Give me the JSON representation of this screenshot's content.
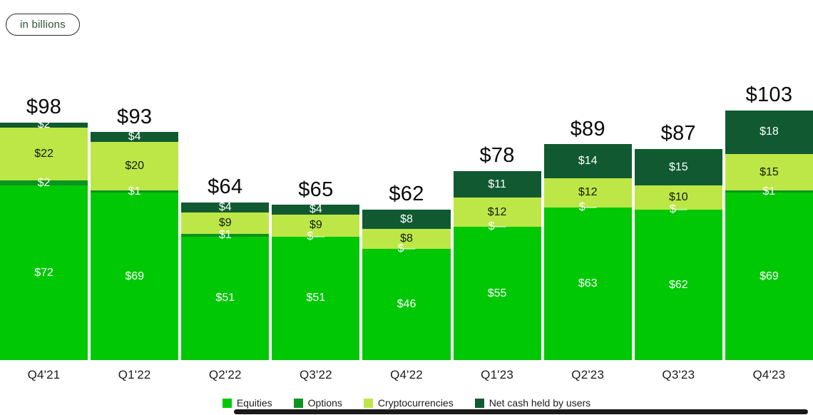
{
  "badge": {
    "label": "in billions"
  },
  "colors": {
    "equities": "#00C805",
    "options": "#0A9420",
    "cryptocurrencies": "#BDE747",
    "net_cash": "#115A31",
    "total_label": "#0a0a0a",
    "axis_label": "#1c1c1c"
  },
  "chart_data": {
    "type": "bar",
    "stacked": true,
    "title": "",
    "unit_note": "in billions",
    "xlabel": "",
    "ylabel": "",
    "ylim": [
      0,
      110
    ],
    "grid": false,
    "y_axis_visible": false,
    "legend_position": "bottom-center",
    "categories": [
      "Q4'21",
      "Q1'22",
      "Q2'22",
      "Q3'22",
      "Q4'22",
      "Q1'23",
      "Q2'23",
      "Q3'23",
      "Q4'23"
    ],
    "totals": [
      "$98",
      "$93",
      "$64",
      "$65",
      "$62",
      "$78",
      "$89",
      "$87",
      "$103"
    ],
    "series": [
      {
        "name": "Equities",
        "color": "#00C805",
        "label_color": "#ffffff",
        "values": [
          72,
          69,
          51,
          51,
          46,
          55,
          63,
          62,
          69
        ],
        "labels": [
          "$72",
          "$69",
          "$51",
          "$51",
          "$46",
          "$55",
          "$63",
          "$62",
          "$69"
        ]
      },
      {
        "name": "Options",
        "color": "#0A9420",
        "label_color": "#ffffff",
        "values": [
          2,
          1,
          1,
          0,
          0,
          0,
          0,
          0,
          1
        ],
        "labels": [
          "$2",
          "$1",
          "$1",
          "$—",
          "$—",
          "$—",
          "$—",
          "$—",
          "$1"
        ]
      },
      {
        "name": "Cryptocurrencies",
        "color": "#BDE747",
        "label_color": "#121a10",
        "values": [
          22,
          20,
          9,
          9,
          8,
          12,
          12,
          10,
          15
        ],
        "labels": [
          "$22",
          "$20",
          "$9",
          "$9",
          "$8",
          "$12",
          "$12",
          "$10",
          "$15"
        ]
      },
      {
        "name": "Net cash held by users",
        "color": "#115A31",
        "label_color": "#ffffff",
        "values": [
          2,
          4,
          4,
          4,
          8,
          11,
          14,
          15,
          18
        ],
        "labels": [
          "$2",
          "$4",
          "$4",
          "$4",
          "$8",
          "$11",
          "$14",
          "$15",
          "$18"
        ]
      }
    ],
    "legend": [
      {
        "label": "Equities",
        "color": "#00C805"
      },
      {
        "label": "Options",
        "color": "#0A9420"
      },
      {
        "label": "Cryptocurrencies",
        "color": "#BDE747"
      },
      {
        "label": "Net cash held by users",
        "color": "#115A31"
      }
    ]
  }
}
